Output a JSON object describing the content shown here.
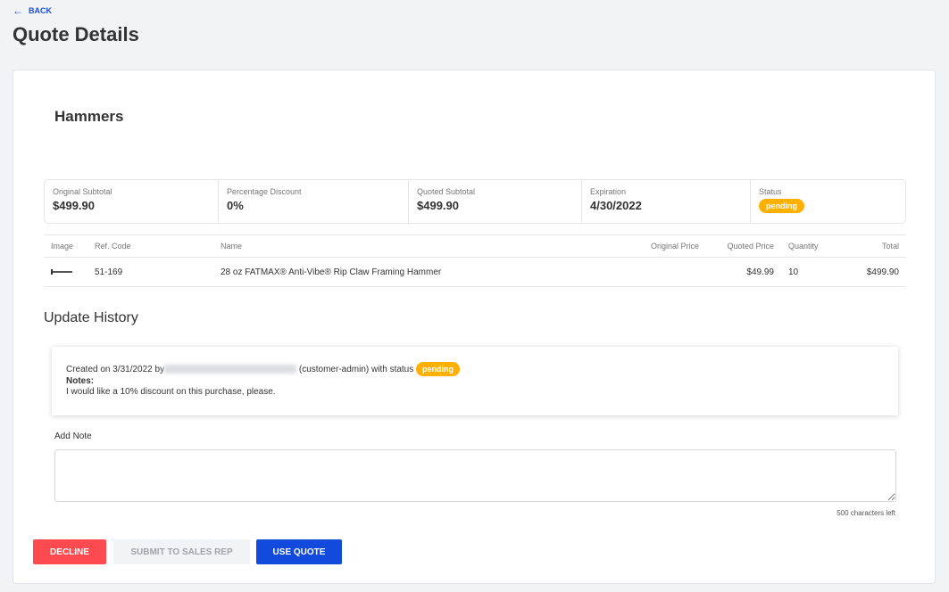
{
  "header": {
    "back_label": "BACK",
    "title": "Quote Details"
  },
  "quote": {
    "title": "Hammers",
    "summary": [
      {
        "label": "Original Subtotal",
        "value": "$499.90"
      },
      {
        "label": "Percentage Discount",
        "value": "0%"
      },
      {
        "label": "Quoted Subtotal",
        "value": "$499.90"
      },
      {
        "label": "Expiration",
        "value": "4/30/2022"
      },
      {
        "label": "Status",
        "value": "pending"
      }
    ],
    "columns": [
      "Image",
      "Ref. Code",
      "Name",
      "Original Price",
      "Quoted Price",
      "Quantity",
      "Total"
    ],
    "items": [
      {
        "ref_code": "51-169",
        "name": "28 oz FATMAX® Anti-Vibe® Rip Claw Framing Hammer",
        "original_price": "",
        "quoted_price": "$49.99",
        "quantity": "10",
        "total": "$499.90"
      }
    ]
  },
  "history": {
    "title": "Update History",
    "entries": [
      {
        "created_prefix": "Created on 3/31/2022 by",
        "role": "(customer-admin) with status",
        "status": "pending",
        "notes_label": "Notes:",
        "notes": "I would like a 10% discount on this purchase, please."
      }
    ]
  },
  "note": {
    "label": "Add Note",
    "value": "",
    "chars_left": "500 characters left"
  },
  "actions": {
    "decline": "DECLINE",
    "submit": "SUBMIT TO SALES REP",
    "use_quote": "USE QUOTE"
  },
  "colors": {
    "accent": "#124bdb",
    "danger": "#ff4b4f",
    "pending": "#ffb000",
    "link": "#1d4ed8"
  }
}
